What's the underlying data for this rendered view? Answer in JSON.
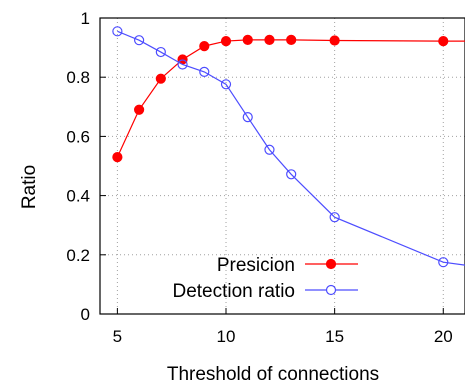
{
  "chart_data": {
    "type": "line",
    "xlabel": "Threshold of connections",
    "ylabel": "Ratio",
    "xlim": [
      4.2,
      21
    ],
    "ylim": [
      0,
      1
    ],
    "xticks": [
      5,
      10,
      15,
      20
    ],
    "yticks": [
      0,
      0.2,
      0.4,
      0.6,
      0.8,
      1
    ],
    "ytick_labels": [
      "0",
      "0.2",
      "0.4",
      "0.6",
      "0.8",
      "1"
    ],
    "grid": true,
    "legend_position": "bottom-right",
    "series": [
      {
        "name": "Presicion",
        "color": "#ff0000",
        "marker": "filled-circle",
        "x": [
          5,
          6,
          7,
          8,
          9,
          10,
          11,
          12,
          13,
          15,
          20
        ],
        "y": [
          0.53,
          0.69,
          0.795,
          0.86,
          0.905,
          0.922,
          0.926,
          0.926,
          0.926,
          0.924,
          0.922
        ],
        "x_end": 21,
        "y_end": 0.922
      },
      {
        "name": "Detection ratio",
        "color": "#4d4dff",
        "marker": "open-circle",
        "x": [
          5,
          6,
          7,
          8,
          9,
          10,
          11,
          12,
          13,
          15,
          20
        ],
        "y": [
          0.955,
          0.925,
          0.885,
          0.843,
          0.818,
          0.776,
          0.665,
          0.555,
          0.472,
          0.327,
          0.175
        ],
        "x_end": 21,
        "y_end": 0.165
      }
    ]
  }
}
